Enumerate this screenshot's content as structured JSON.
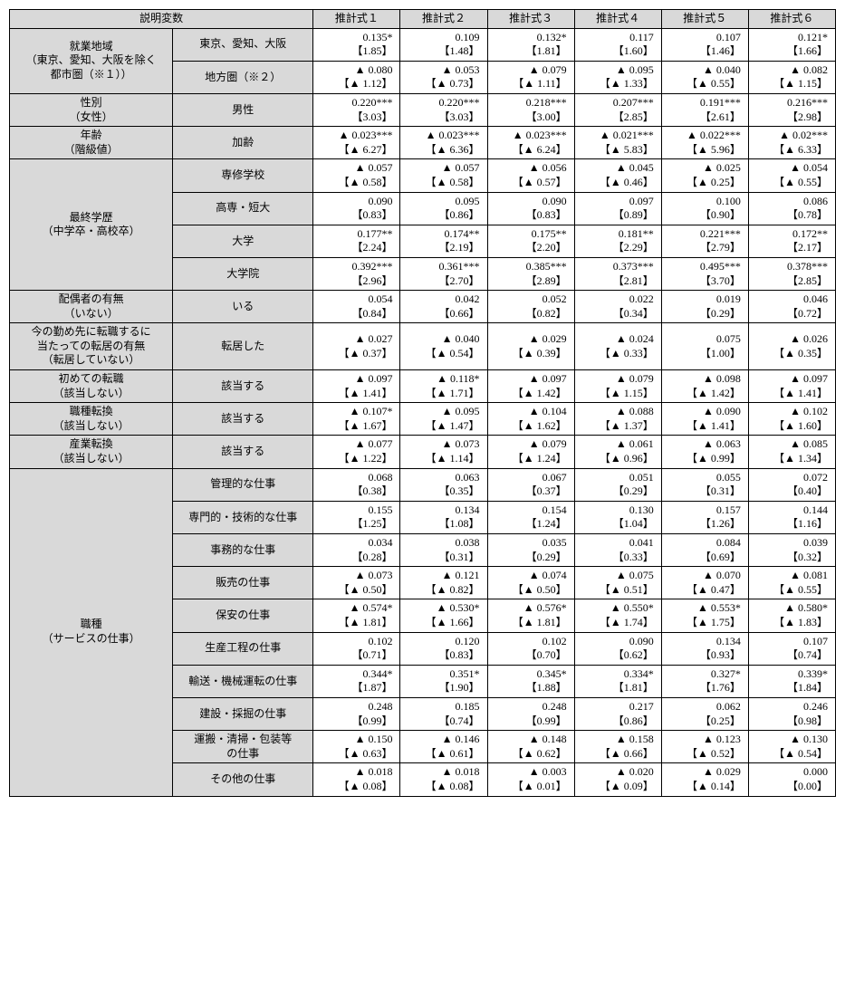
{
  "headers": {
    "var": "説明変数",
    "est1": "推計式１",
    "est2": "推計式２",
    "est3": "推計式３",
    "est4": "推計式４",
    "est5": "推計式５",
    "est6": "推計式６"
  },
  "groups": [
    {
      "label": "就業地域\n（東京、愛知、大阪を除く\n都市圏（※１））",
      "rows": [
        {
          "sub": "東京、愛知、大阪",
          "v": [
            [
              "0.135*",
              "【1.85】"
            ],
            [
              "0.109",
              "【1.48】"
            ],
            [
              "0.132*",
              "【1.81】"
            ],
            [
              "0.117",
              "【1.60】"
            ],
            [
              "0.107",
              "【1.46】"
            ],
            [
              "0.121*",
              "【1.66】"
            ]
          ]
        },
        {
          "sub": "地方圏（※２）",
          "v": [
            [
              "▲ 0.080",
              "【▲ 1.12】"
            ],
            [
              "▲ 0.053",
              "【▲ 0.73】"
            ],
            [
              "▲ 0.079",
              "【▲ 1.11】"
            ],
            [
              "▲ 0.095",
              "【▲ 1.33】"
            ],
            [
              "▲ 0.040",
              "【▲ 0.55】"
            ],
            [
              "▲ 0.082",
              "【▲ 1.15】"
            ]
          ]
        }
      ]
    },
    {
      "label": "性別\n（女性）",
      "rows": [
        {
          "sub": "男性",
          "v": [
            [
              "0.220***",
              "【3.03】"
            ],
            [
              "0.220***",
              "【3.03】"
            ],
            [
              "0.218***",
              "【3.00】"
            ],
            [
              "0.207***",
              "【2.85】"
            ],
            [
              "0.191***",
              "【2.61】"
            ],
            [
              "0.216***",
              "【2.98】"
            ]
          ]
        }
      ]
    },
    {
      "label": "年齢\n（階級値）",
      "rows": [
        {
          "sub": "加齢",
          "v": [
            [
              "▲ 0.023***",
              "【▲ 6.27】"
            ],
            [
              "▲ 0.023***",
              "【▲ 6.36】"
            ],
            [
              "▲ 0.023***",
              "【▲ 6.24】"
            ],
            [
              "▲ 0.021***",
              "【▲ 5.83】"
            ],
            [
              "▲ 0.022***",
              "【▲ 5.96】"
            ],
            [
              "▲ 0.02***",
              "【▲ 6.33】"
            ]
          ]
        }
      ]
    },
    {
      "label": "最終学歴\n（中学卒・高校卒）",
      "rows": [
        {
          "sub": "専修学校",
          "v": [
            [
              "▲ 0.057",
              "【▲ 0.58】"
            ],
            [
              "▲ 0.057",
              "【▲ 0.58】"
            ],
            [
              "▲ 0.056",
              "【▲ 0.57】"
            ],
            [
              "▲ 0.045",
              "【▲ 0.46】"
            ],
            [
              "▲ 0.025",
              "【▲ 0.25】"
            ],
            [
              "▲ 0.054",
              "【▲ 0.55】"
            ]
          ]
        },
        {
          "sub": "高専・短大",
          "v": [
            [
              "0.090",
              "【0.83】"
            ],
            [
              "0.095",
              "【0.86】"
            ],
            [
              "0.090",
              "【0.83】"
            ],
            [
              "0.097",
              "【0.89】"
            ],
            [
              "0.100",
              "【0.90】"
            ],
            [
              "0.086",
              "【0.78】"
            ]
          ]
        },
        {
          "sub": "大学",
          "v": [
            [
              "0.177**",
              "【2.24】"
            ],
            [
              "0.174**",
              "【2.19】"
            ],
            [
              "0.175**",
              "【2.20】"
            ],
            [
              "0.181**",
              "【2.29】"
            ],
            [
              "0.221***",
              "【2.79】"
            ],
            [
              "0.172**",
              "【2.17】"
            ]
          ]
        },
        {
          "sub": "大学院",
          "v": [
            [
              "0.392***",
              "【2.96】"
            ],
            [
              "0.361***",
              "【2.70】"
            ],
            [
              "0.385***",
              "【2.89】"
            ],
            [
              "0.373***",
              "【2.81】"
            ],
            [
              "0.495***",
              "【3.70】"
            ],
            [
              "0.378***",
              "【2.85】"
            ]
          ]
        }
      ]
    },
    {
      "label": "配偶者の有無\n（いない）",
      "rows": [
        {
          "sub": "いる",
          "v": [
            [
              "0.054",
              "【0.84】"
            ],
            [
              "0.042",
              "【0.66】"
            ],
            [
              "0.052",
              "【0.82】"
            ],
            [
              "0.022",
              "【0.34】"
            ],
            [
              "0.019",
              "【0.29】"
            ],
            [
              "0.046",
              "【0.72】"
            ]
          ]
        }
      ]
    },
    {
      "label": "今の勤め先に転職するに\n当たっての転居の有無\n（転居していない）",
      "rows": [
        {
          "sub": "転居した",
          "v": [
            [
              "▲ 0.027",
              "【▲ 0.37】"
            ],
            [
              "▲ 0.040",
              "【▲ 0.54】"
            ],
            [
              "▲ 0.029",
              "【▲ 0.39】"
            ],
            [
              "▲ 0.024",
              "【▲ 0.33】"
            ],
            [
              "0.075",
              "【1.00】"
            ],
            [
              "▲ 0.026",
              "【▲ 0.35】"
            ]
          ]
        }
      ]
    },
    {
      "label": "初めての転職\n（該当しない）",
      "rows": [
        {
          "sub": "該当する",
          "v": [
            [
              "▲ 0.097",
              "【▲ 1.41】"
            ],
            [
              "▲ 0.118*",
              "【▲ 1.71】"
            ],
            [
              "▲ 0.097",
              "【▲ 1.42】"
            ],
            [
              "▲ 0.079",
              "【▲ 1.15】"
            ],
            [
              "▲ 0.098",
              "【▲ 1.42】"
            ],
            [
              "▲ 0.097",
              "【▲ 1.41】"
            ]
          ]
        }
      ]
    },
    {
      "label": "職種転換\n（該当しない）",
      "rows": [
        {
          "sub": "該当する",
          "v": [
            [
              "▲ 0.107*",
              "【▲ 1.67】"
            ],
            [
              "▲ 0.095",
              "【▲ 1.47】"
            ],
            [
              "▲ 0.104",
              "【▲ 1.62】"
            ],
            [
              "▲ 0.088",
              "【▲ 1.37】"
            ],
            [
              "▲ 0.090",
              "【▲ 1.41】"
            ],
            [
              "▲ 0.102",
              "【▲ 1.60】"
            ]
          ]
        }
      ]
    },
    {
      "label": "産業転換\n（該当しない）",
      "rows": [
        {
          "sub": "該当する",
          "v": [
            [
              "▲ 0.077",
              "【▲ 1.22】"
            ],
            [
              "▲ 0.073",
              "【▲ 1.14】"
            ],
            [
              "▲ 0.079",
              "【▲ 1.24】"
            ],
            [
              "▲ 0.061",
              "【▲ 0.96】"
            ],
            [
              "▲ 0.063",
              "【▲ 0.99】"
            ],
            [
              "▲ 0.085",
              "【▲ 1.34】"
            ]
          ]
        }
      ]
    },
    {
      "label": "職種\n（サービスの仕事）",
      "rows": [
        {
          "sub": "管理的な仕事",
          "v": [
            [
              "0.068",
              "【0.38】"
            ],
            [
              "0.063",
              "【0.35】"
            ],
            [
              "0.067",
              "【0.37】"
            ],
            [
              "0.051",
              "【0.29】"
            ],
            [
              "0.055",
              "【0.31】"
            ],
            [
              "0.072",
              "【0.40】"
            ]
          ]
        },
        {
          "sub": "専門的・技術的な仕事",
          "v": [
            [
              "0.155",
              "【1.25】"
            ],
            [
              "0.134",
              "【1.08】"
            ],
            [
              "0.154",
              "【1.24】"
            ],
            [
              "0.130",
              "【1.04】"
            ],
            [
              "0.157",
              "【1.26】"
            ],
            [
              "0.144",
              "【1.16】"
            ]
          ]
        },
        {
          "sub": "事務的な仕事",
          "v": [
            [
              "0.034",
              "【0.28】"
            ],
            [
              "0.038",
              "【0.31】"
            ],
            [
              "0.035",
              "【0.29】"
            ],
            [
              "0.041",
              "【0.33】"
            ],
            [
              "0.084",
              "【0.69】"
            ],
            [
              "0.039",
              "【0.32】"
            ]
          ]
        },
        {
          "sub": "販売の仕事",
          "v": [
            [
              "▲ 0.073",
              "【▲ 0.50】"
            ],
            [
              "▲ 0.121",
              "【▲ 0.82】"
            ],
            [
              "▲ 0.074",
              "【▲ 0.50】"
            ],
            [
              "▲ 0.075",
              "【▲ 0.51】"
            ],
            [
              "▲ 0.070",
              "【▲ 0.47】"
            ],
            [
              "▲ 0.081",
              "【▲ 0.55】"
            ]
          ]
        },
        {
          "sub": "保安の仕事",
          "v": [
            [
              "▲ 0.574*",
              "【▲ 1.81】"
            ],
            [
              "▲ 0.530*",
              "【▲ 1.66】"
            ],
            [
              "▲ 0.576*",
              "【▲ 1.81】"
            ],
            [
              "▲ 0.550*",
              "【▲ 1.74】"
            ],
            [
              "▲ 0.553*",
              "【▲ 1.75】"
            ],
            [
              "▲ 0.580*",
              "【▲ 1.83】"
            ]
          ]
        },
        {
          "sub": "生産工程の仕事",
          "v": [
            [
              "0.102",
              "【0.71】"
            ],
            [
              "0.120",
              "【0.83】"
            ],
            [
              "0.102",
              "【0.70】"
            ],
            [
              "0.090",
              "【0.62】"
            ],
            [
              "0.134",
              "【0.93】"
            ],
            [
              "0.107",
              "【0.74】"
            ]
          ]
        },
        {
          "sub": "輸送・機械運転の仕事",
          "v": [
            [
              "0.344*",
              "【1.87】"
            ],
            [
              "0.351*",
              "【1.90】"
            ],
            [
              "0.345*",
              "【1.88】"
            ],
            [
              "0.334*",
              "【1.81】"
            ],
            [
              "0.327*",
              "【1.76】"
            ],
            [
              "0.339*",
              "【1.84】"
            ]
          ]
        },
        {
          "sub": "建設・採掘の仕事",
          "v": [
            [
              "0.248",
              "【0.99】"
            ],
            [
              "0.185",
              "【0.74】"
            ],
            [
              "0.248",
              "【0.99】"
            ],
            [
              "0.217",
              "【0.86】"
            ],
            [
              "0.062",
              "【0.25】"
            ],
            [
              "0.246",
              "【0.98】"
            ]
          ]
        },
        {
          "sub": "運搬・清掃・包装等\nの仕事",
          "v": [
            [
              "▲ 0.150",
              "【▲ 0.63】"
            ],
            [
              "▲ 0.146",
              "【▲ 0.61】"
            ],
            [
              "▲ 0.148",
              "【▲ 0.62】"
            ],
            [
              "▲ 0.158",
              "【▲ 0.66】"
            ],
            [
              "▲ 0.123",
              "【▲ 0.52】"
            ],
            [
              "▲ 0.130",
              "【▲ 0.54】"
            ]
          ]
        },
        {
          "sub": "その他の仕事",
          "v": [
            [
              "▲ 0.018",
              "【▲ 0.08】"
            ],
            [
              "▲ 0.018",
              "【▲ 0.08】"
            ],
            [
              "▲ 0.003",
              "【▲ 0.01】"
            ],
            [
              "▲ 0.020",
              "【▲ 0.09】"
            ],
            [
              "▲ 0.029",
              "【▲ 0.14】"
            ],
            [
              "0.000",
              "【0.00】"
            ]
          ]
        }
      ]
    }
  ]
}
